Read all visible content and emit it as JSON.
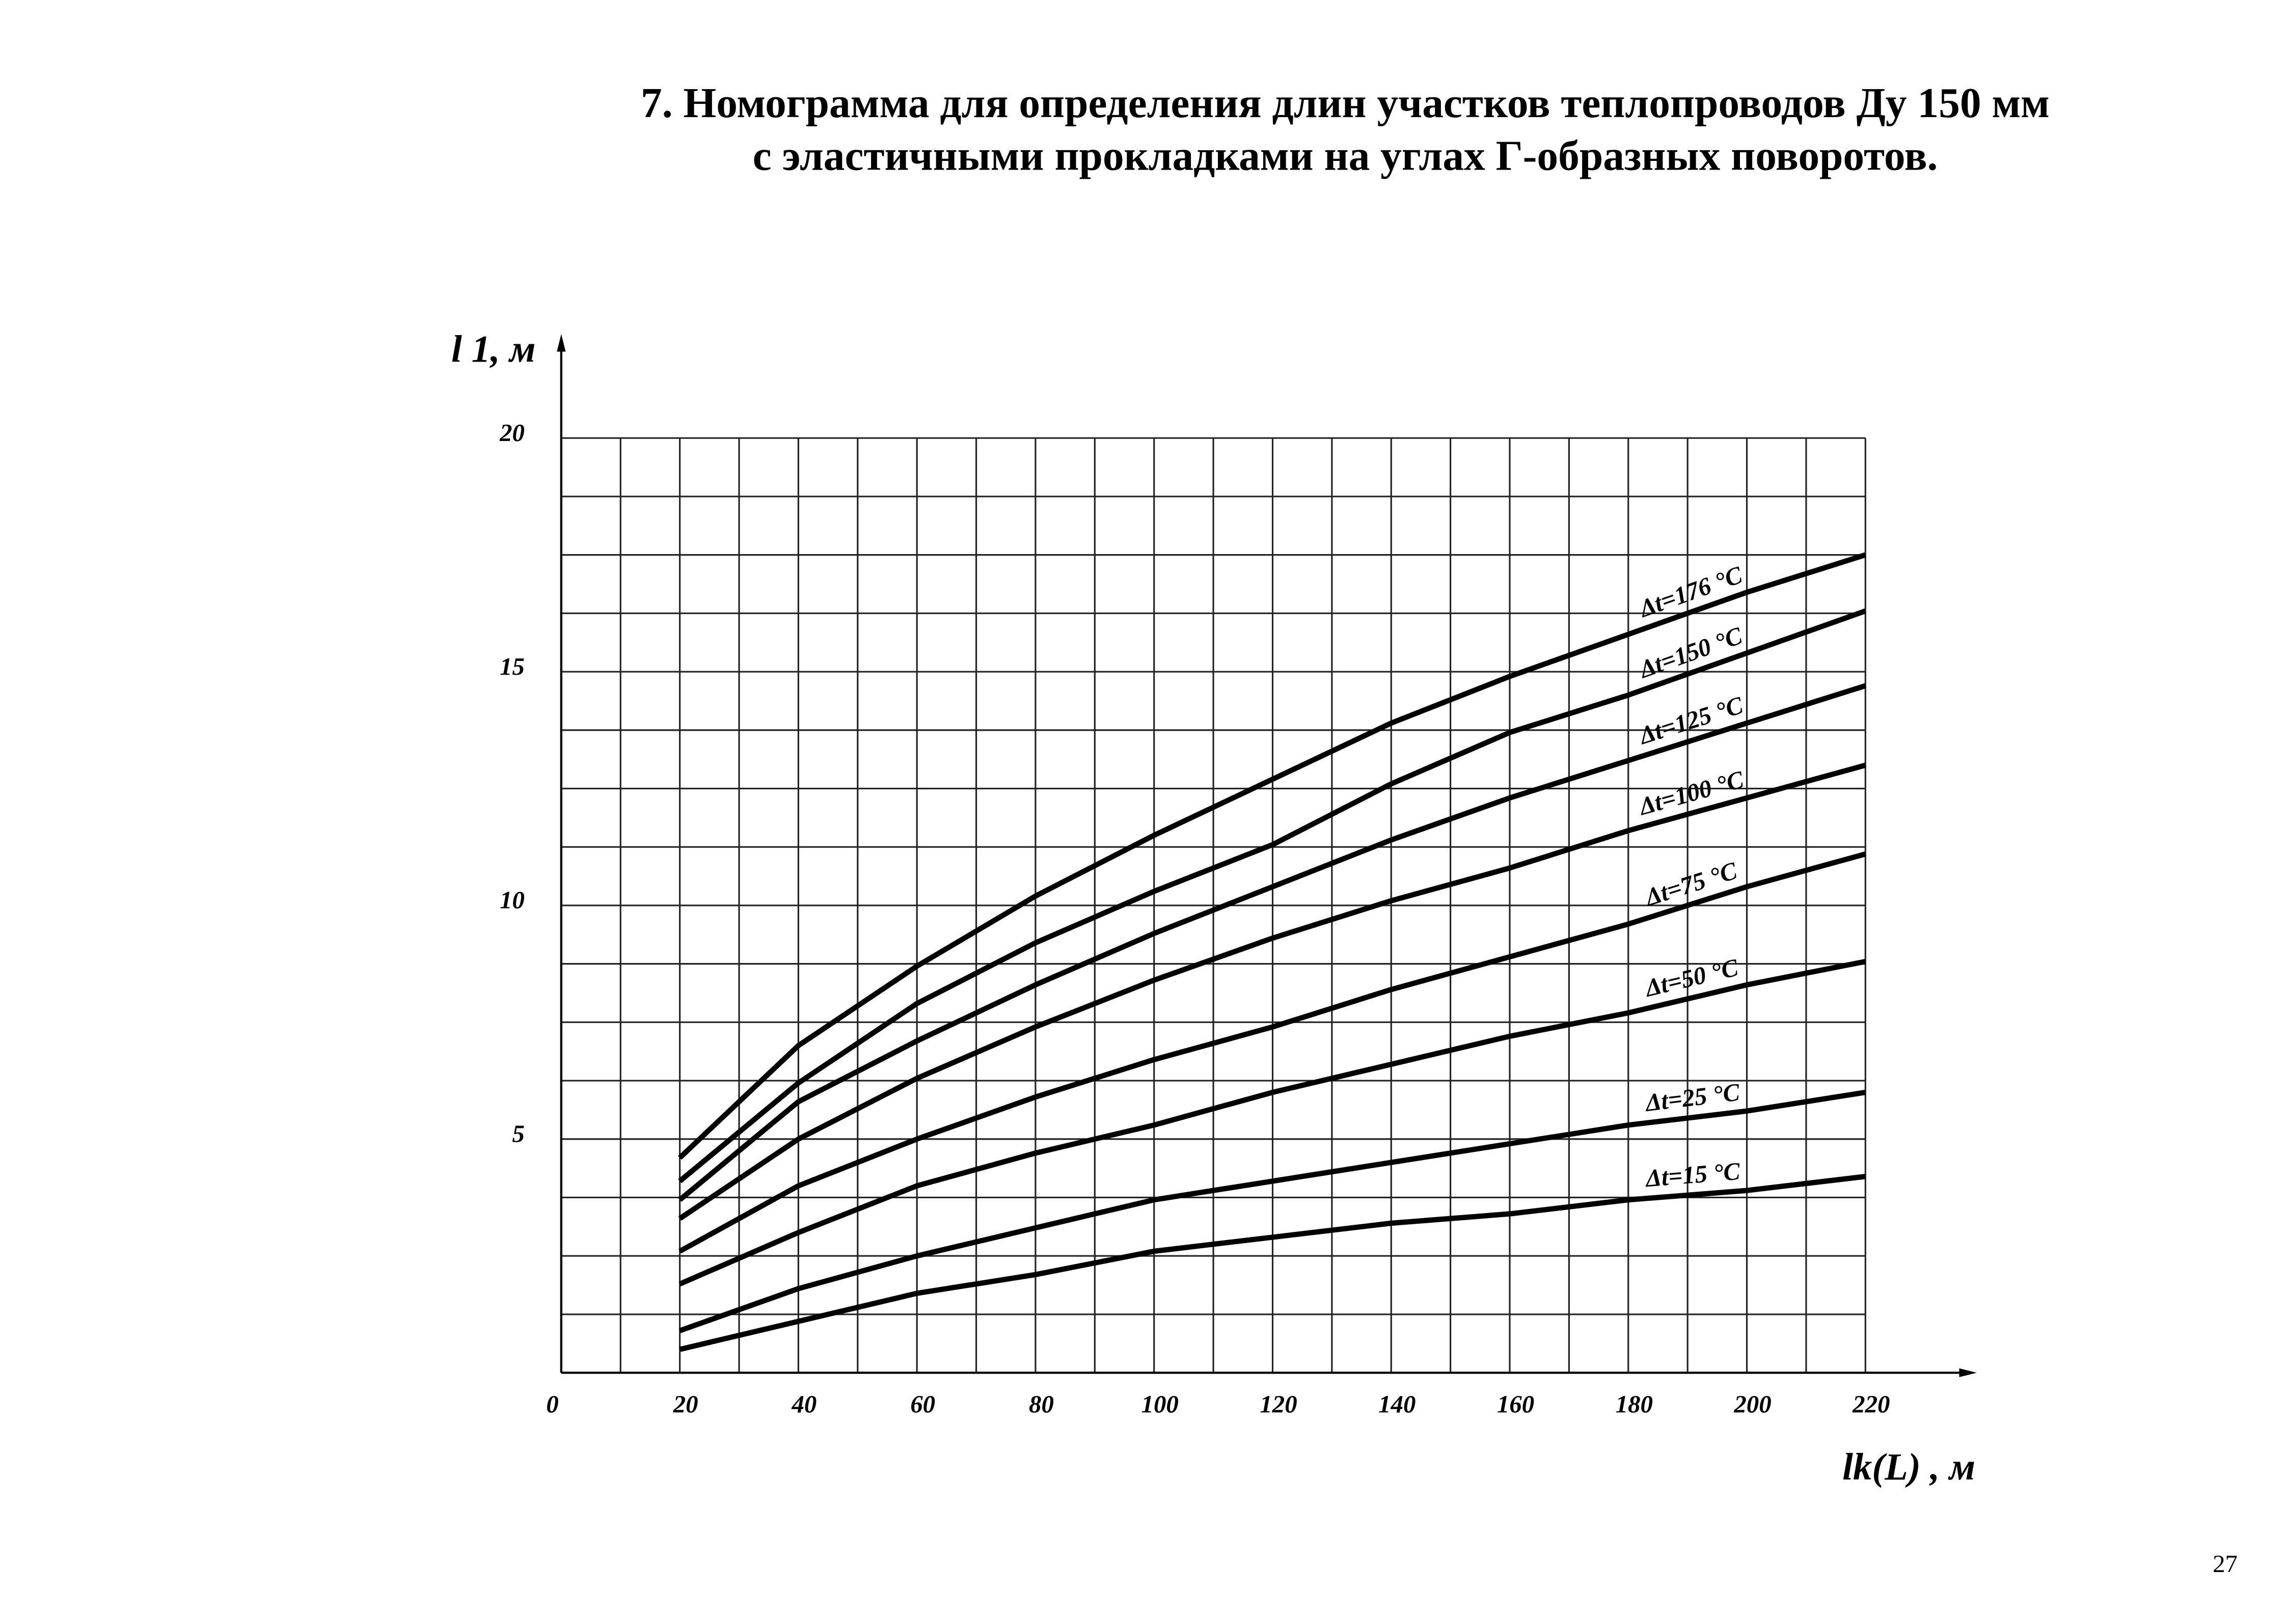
{
  "chart_data": {
    "type": "line",
    "title": [
      "7. Номограмма для определения длин участков теплопроводов Ду 150 мм",
      "с эластичными прокладками на углах Г-образных поворотов."
    ],
    "x_label": "lk(L) , м",
    "y_label": "l 1, м",
    "page_number": "27",
    "x": [
      20,
      40,
      60,
      80,
      100,
      120,
      140,
      160,
      180,
      200,
      220
    ],
    "series": [
      {
        "name": "Δt=176 °C",
        "color": "#000000",
        "values": [
          4.6,
          7.0,
          8.7,
          10.2,
          11.5,
          12.7,
          13.9,
          14.9,
          15.8,
          16.7,
          17.5
        ]
      },
      {
        "name": "Δt=150 °C",
        "color": "#000000",
        "values": [
          4.1,
          6.2,
          7.9,
          9.2,
          10.3,
          11.3,
          12.6,
          13.7,
          14.5,
          15.4,
          16.3
        ]
      },
      {
        "name": "Δt=125 °C",
        "color": "#000000",
        "values": [
          3.7,
          5.8,
          7.1,
          8.3,
          9.4,
          10.4,
          11.4,
          12.3,
          13.1,
          13.9,
          14.7
        ]
      },
      {
        "name": "Δt=100 °C",
        "color": "#000000",
        "values": [
          3.3,
          5.0,
          6.3,
          7.4,
          8.4,
          9.3,
          10.1,
          10.8,
          11.6,
          12.3,
          13.0
        ]
      },
      {
        "name": "Δt=75 °C",
        "color": "#000000",
        "values": [
          2.6,
          4.0,
          5.0,
          5.9,
          6.7,
          7.4,
          8.2,
          8.9,
          9.6,
          10.4,
          11.1
        ]
      },
      {
        "name": "Δt=50 °C",
        "color": "#000000",
        "values": [
          1.9,
          3.0,
          4.0,
          4.7,
          5.3,
          6.0,
          6.6,
          7.2,
          7.7,
          8.3,
          8.8
        ]
      },
      {
        "name": "Δt=25 °C",
        "color": "#000000",
        "values": [
          0.9,
          1.8,
          2.5,
          3.1,
          3.7,
          4.1,
          4.5,
          4.9,
          5.3,
          5.6,
          6.0
        ]
      },
      {
        "name": "Δt=15 °C",
        "color": "#000000",
        "values": [
          0.5,
          1.1,
          1.7,
          2.1,
          2.6,
          2.9,
          3.2,
          3.4,
          3.7,
          3.9,
          4.2
        ]
      }
    ],
    "xlim": [
      0,
      220
    ],
    "ylim": [
      0,
      20
    ],
    "xticks": [
      0,
      20,
      40,
      60,
      80,
      100,
      120,
      140,
      160,
      180,
      200,
      220
    ],
    "yticks": [
      5,
      10,
      15,
      20
    ],
    "grid": true
  }
}
